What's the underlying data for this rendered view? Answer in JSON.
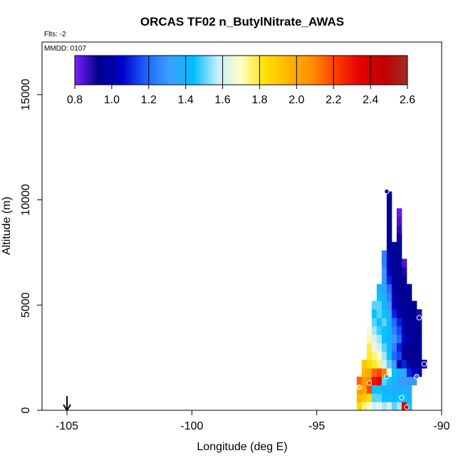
{
  "chart_data": {
    "type": "heatmap",
    "title": "ORCAS TF02 n_ButylNitrate_AWAS",
    "note_flights": "Flts: -2",
    "note_date": "MMDD: 0107",
    "xlabel": "Longitude (deg E)",
    "ylabel": "Altitude (m)",
    "xlim": [
      -106,
      -90
    ],
    "ylim": [
      0,
      17500
    ],
    "x_ticks": [
      -105,
      -100,
      -95,
      -90
    ],
    "x_tick_labels": [
      "-105",
      "-100",
      "-95",
      "-90"
    ],
    "y_ticks": [
      0,
      5000,
      10000,
      15000
    ],
    "y_tick_labels": [
      "0",
      "5000",
      "10000",
      "15000"
    ],
    "colorbar": {
      "min": 0.8,
      "max": 2.6,
      "ticks": [
        0.8,
        1.0,
        1.2,
        1.4,
        1.6,
        1.8,
        2.0,
        2.2,
        2.4,
        2.6
      ],
      "tick_labels": [
        "0.8",
        "1.0",
        "1.2",
        "1.4",
        "1.6",
        "1.8",
        "2.0",
        "2.2",
        "2.4",
        "2.6"
      ],
      "colors": [
        "#7d1fff",
        "#00008b",
        "#0000cd",
        "#1e64ff",
        "#3ca0ff",
        "#00bfff",
        "#c6ecff",
        "#ffffc8",
        "#ffe100",
        "#ffb400",
        "#ff8c00",
        "#ff3c00",
        "#e60000",
        "#c00000",
        "#a52a2a"
      ]
    },
    "marker": {
      "x": -105,
      "label": "arrow"
    },
    "cell_width_deg": 0.2,
    "cell_height_m": 400,
    "columns": [
      {
        "x": -93.3,
        "cells": [
          [
            0,
            1.85
          ],
          [
            400,
            1.95
          ],
          [
            800,
            2.05
          ],
          [
            1200,
            2.15
          ]
        ]
      },
      {
        "x": -93.1,
        "cells": [
          [
            0,
            1.75
          ],
          [
            400,
            1.9
          ],
          [
            800,
            2.0
          ],
          [
            1200,
            2.05
          ],
          [
            1600,
            1.95
          ],
          [
            2000,
            1.9
          ]
        ]
      },
      {
        "x": -92.9,
        "cells": [
          [
            0,
            1.7
          ],
          [
            400,
            1.85
          ],
          [
            800,
            2.2
          ],
          [
            1200,
            2.1
          ],
          [
            1600,
            2.0
          ],
          [
            2000,
            1.85
          ],
          [
            2400,
            1.8
          ],
          [
            2800,
            1.78
          ],
          [
            3200,
            1.72
          ],
          [
            3600,
            1.68
          ]
        ]
      },
      {
        "x": -92.7,
        "cells": [
          [
            0,
            1.6
          ],
          [
            400,
            1.5
          ],
          [
            800,
            1.45
          ],
          [
            1200,
            2.3
          ],
          [
            1600,
            2.15
          ],
          [
            2000,
            1.8
          ],
          [
            2400,
            1.75
          ],
          [
            2800,
            1.65
          ],
          [
            3200,
            1.62
          ],
          [
            3600,
            1.55
          ],
          [
            4000,
            1.5
          ],
          [
            4400,
            1.45
          ],
          [
            4800,
            1.5
          ]
        ]
      },
      {
        "x": -92.5,
        "cells": [
          [
            0,
            1.65
          ],
          [
            400,
            1.5
          ],
          [
            800,
            1.45
          ],
          [
            1200,
            2.35
          ],
          [
            1600,
            2.2
          ],
          [
            2000,
            1.75
          ],
          [
            2400,
            1.7
          ],
          [
            2800,
            1.6
          ],
          [
            3200,
            1.55
          ],
          [
            3600,
            1.48
          ],
          [
            4000,
            1.45
          ],
          [
            4400,
            1.5
          ],
          [
            4800,
            1.5
          ],
          [
            5200,
            1.45
          ],
          [
            5600,
            1.4
          ]
        ]
      },
      {
        "x": -92.3,
        "cells": [
          [
            0,
            1.55
          ],
          [
            400,
            1.45
          ],
          [
            800,
            1.4
          ],
          [
            1200,
            1.5
          ],
          [
            1600,
            2.1
          ],
          [
            2000,
            1.6
          ],
          [
            2400,
            1.55
          ],
          [
            2800,
            1.5
          ],
          [
            3200,
            1.45
          ],
          [
            3600,
            1.45
          ],
          [
            4000,
            1.5
          ],
          [
            4400,
            1.45
          ],
          [
            4800,
            1.4
          ],
          [
            5200,
            1.38
          ],
          [
            5600,
            1.35
          ],
          [
            6000,
            1.3
          ],
          [
            6400,
            1.3
          ],
          [
            6800,
            1.25
          ],
          [
            7200,
            1.25
          ]
        ]
      },
      {
        "x": -92.1,
        "cells": [
          [
            0,
            1.6
          ],
          [
            400,
            1.45
          ],
          [
            800,
            1.4
          ],
          [
            1200,
            1.45
          ],
          [
            1600,
            1.7
          ],
          [
            2000,
            1.5
          ],
          [
            2400,
            1.45
          ],
          [
            2800,
            1.42
          ],
          [
            3200,
            1.4
          ],
          [
            3600,
            1.42
          ],
          [
            4000,
            1.38
          ],
          [
            4400,
            1.35
          ],
          [
            4800,
            1.3
          ],
          [
            5200,
            1.25
          ],
          [
            5600,
            1.2
          ],
          [
            6000,
            1.1
          ],
          [
            6400,
            1.05
          ],
          [
            6800,
            1.0
          ],
          [
            7200,
            1.0
          ],
          [
            7600,
            0.95
          ],
          [
            8000,
            0.95
          ],
          [
            8400,
            0.95
          ],
          [
            8800,
            0.95
          ],
          [
            9200,
            0.95
          ],
          [
            9600,
            0.95
          ],
          [
            10000,
            0.95
          ]
        ]
      },
      {
        "x": -91.9,
        "cells": [
          [
            0,
            1.5
          ],
          [
            400,
            1.4
          ],
          [
            800,
            1.35
          ],
          [
            1200,
            1.4
          ],
          [
            1600,
            1.45
          ],
          [
            2000,
            1.3
          ],
          [
            2400,
            1.2
          ],
          [
            2800,
            1.25
          ],
          [
            3200,
            1.3
          ],
          [
            3600,
            1.25
          ],
          [
            4000,
            1.2
          ],
          [
            4400,
            1.1
          ],
          [
            4800,
            1.05
          ],
          [
            5200,
            1.0
          ],
          [
            5600,
            1.0
          ],
          [
            6000,
            0.95
          ],
          [
            6400,
            0.95
          ],
          [
            6800,
            0.95
          ],
          [
            7200,
            0.95
          ],
          [
            7600,
            0.95
          ]
        ]
      },
      {
        "x": -91.7,
        "cells": [
          [
            0,
            1.55
          ],
          [
            400,
            1.45
          ],
          [
            800,
            1.4
          ],
          [
            1200,
            1.3
          ],
          [
            1600,
            1.4
          ],
          [
            2000,
            1.0
          ],
          [
            2400,
            1.15
          ],
          [
            2800,
            1.1
          ],
          [
            3200,
            1.2
          ],
          [
            3600,
            1.15
          ],
          [
            4000,
            1.1
          ],
          [
            4400,
            1.0
          ],
          [
            4800,
            0.95
          ],
          [
            5200,
            0.95
          ],
          [
            5600,
            0.95
          ],
          [
            6000,
            0.95
          ],
          [
            6400,
            0.95
          ],
          [
            6800,
            0.95
          ],
          [
            7200,
            0.95
          ],
          [
            7600,
            0.95
          ],
          [
            8000,
            0.92
          ],
          [
            8400,
            0.88
          ],
          [
            8800,
            0.85
          ],
          [
            9200,
            0.82
          ]
        ]
      },
      {
        "x": -91.5,
        "cells": [
          [
            0,
            2.4
          ],
          [
            400,
            1.45
          ],
          [
            800,
            1.4
          ],
          [
            1200,
            1.3
          ],
          [
            1600,
            1.35
          ],
          [
            2000,
            1.1
          ],
          [
            2400,
            0.95
          ],
          [
            2800,
            0.98
          ],
          [
            3200,
            1.05
          ],
          [
            3600,
            1.0
          ],
          [
            4000,
            0.98
          ],
          [
            4400,
            0.95
          ],
          [
            4800,
            0.95
          ],
          [
            5200,
            0.95
          ],
          [
            5600,
            0.95
          ],
          [
            6000,
            0.92
          ],
          [
            6400,
            0.9
          ],
          [
            6800,
            0.85
          ]
        ]
      },
      {
        "x": -91.3,
        "cells": [
          [
            0,
            1.45
          ],
          [
            400,
            1.4
          ],
          [
            800,
            1.35
          ],
          [
            1200,
            1.3
          ],
          [
            1600,
            1.1
          ],
          [
            2000,
            0.95
          ],
          [
            2400,
            0.95
          ],
          [
            2800,
            0.95
          ],
          [
            3200,
            0.95
          ],
          [
            3600,
            0.95
          ],
          [
            4000,
            0.95
          ],
          [
            4400,
            0.95
          ],
          [
            4800,
            0.95
          ],
          [
            5200,
            0.95
          ],
          [
            5600,
            0.95
          ]
        ]
      },
      {
        "x": -91.1,
        "cells": [
          [
            1200,
            1.3
          ],
          [
            1600,
            1.05
          ],
          [
            2000,
            0.95
          ],
          [
            2400,
            0.95
          ],
          [
            2800,
            0.95
          ],
          [
            3200,
            0.95
          ],
          [
            3600,
            0.95
          ],
          [
            4000,
            0.95
          ],
          [
            4400,
            0.95
          ],
          [
            4800,
            0.95
          ]
        ]
      },
      {
        "x": -90.9,
        "cells": [
          [
            1600,
            1.0
          ],
          [
            2000,
            0.95
          ],
          [
            2400,
            0.95
          ],
          [
            2800,
            0.95
          ],
          [
            3200,
            0.95
          ],
          [
            3600,
            0.95
          ],
          [
            4000,
            0.95
          ],
          [
            4400,
            0.9
          ]
        ]
      },
      {
        "x": -90.7,
        "cells": [
          [
            2000,
            0.95
          ]
        ]
      }
    ],
    "sample_points": [
      {
        "x": -92.2,
        "y": 10400,
        "value": 0.95
      },
      {
        "x": -90.9,
        "y": 4400,
        "value": 0.95
      },
      {
        "x": -90.7,
        "y": 2200,
        "value": 0.95
      },
      {
        "x": -91.0,
        "y": 1600,
        "value": 1.2
      },
      {
        "x": -92.2,
        "y": 1600,
        "value": 1.4
      },
      {
        "x": -92.9,
        "y": 1300,
        "value": 2.2
      },
      {
        "x": -93.3,
        "y": 1100,
        "value": 1.9
      },
      {
        "x": -91.6,
        "y": 600,
        "value": 1.4
      },
      {
        "x": -92.5,
        "y": 150,
        "value": 1.6
      },
      {
        "x": -91.4,
        "y": 150,
        "value": 2.4
      }
    ]
  }
}
